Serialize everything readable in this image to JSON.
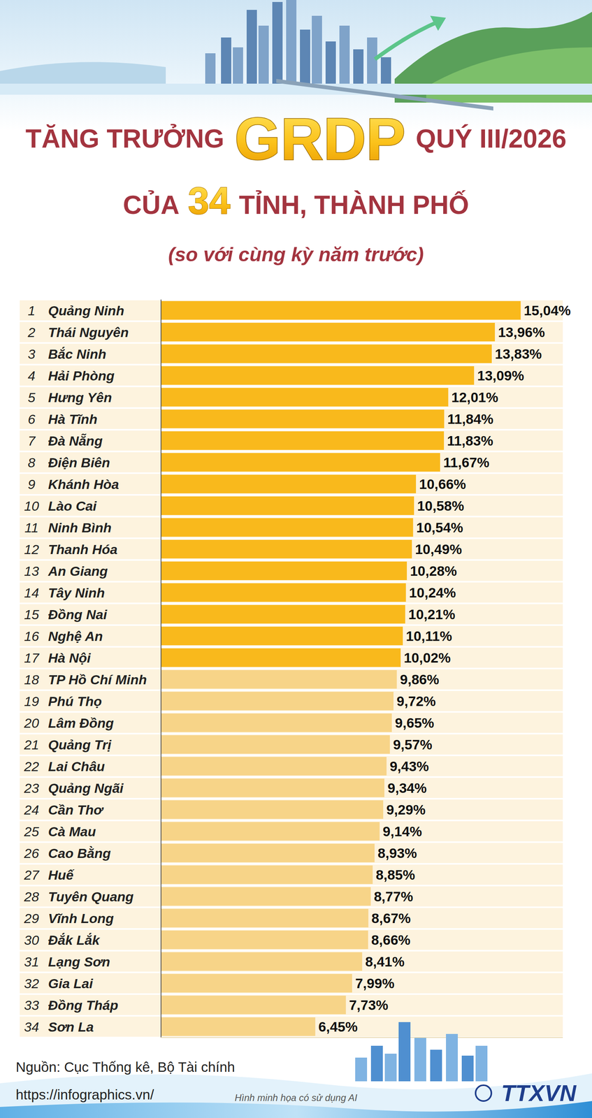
{
  "chart_data": {
    "type": "bar",
    "orientation": "horizontal",
    "title": [
      "TĂNG TRƯỞNG",
      "GRDP",
      "QUÝ III/2026"
    ],
    "subtitle": [
      "CỦA",
      "34",
      "TỈNH, THÀNH PHỐ"
    ],
    "note": "(so với cùng kỳ năm trước)",
    "ranks": [
      1,
      2,
      3,
      4,
      5,
      6,
      7,
      8,
      9,
      10,
      11,
      12,
      13,
      14,
      15,
      16,
      17,
      18,
      19,
      20,
      21,
      22,
      23,
      24,
      25,
      26,
      27,
      28,
      29,
      30,
      31,
      32,
      33,
      34
    ],
    "categories": [
      "Quảng Ninh",
      "Thái Nguyên",
      "Bắc Ninh",
      "Hải Phòng",
      "Hưng Yên",
      "Hà Tĩnh",
      "Đà Nẵng",
      "Điện Biên",
      "Khánh Hòa",
      "Lào Cai",
      "Ninh Bình",
      "Thanh Hóa",
      "An Giang",
      "Tây Ninh",
      "Đồng Nai",
      "Nghệ An",
      "Hà Nội",
      "TP Hồ Chí Minh",
      "Phú Thọ",
      "Lâm Đồng",
      "Quảng Trị",
      "Lai Châu",
      "Quảng Ngãi",
      "Cần Thơ",
      "Cà Mau",
      "Cao Bằng",
      "Huế",
      "Tuyên Quang",
      "Vĩnh Long",
      "Đắk Lắk",
      "Lạng Sơn",
      "Gia Lai",
      "Đồng Tháp",
      "Sơn La"
    ],
    "values": [
      15.04,
      13.96,
      13.83,
      13.09,
      12.01,
      11.84,
      11.83,
      11.67,
      10.66,
      10.58,
      10.54,
      10.49,
      10.28,
      10.24,
      10.21,
      10.11,
      10.02,
      9.86,
      9.72,
      9.65,
      9.57,
      9.43,
      9.34,
      9.29,
      9.14,
      8.93,
      8.85,
      8.77,
      8.67,
      8.66,
      8.41,
      7.99,
      7.73,
      6.45
    ],
    "value_labels": [
      "15,04%",
      "13,96%",
      "13,83%",
      "13,09%",
      "12,01%",
      "11,84%",
      "11,83%",
      "11,67%",
      "10,66%",
      "10,58%",
      "10,54%",
      "10,49%",
      "10,28%",
      "10,24%",
      "10,21%",
      "10,11%",
      "10,02%",
      "9,86%",
      "9,72%",
      "9,65%",
      "9,57%",
      "9,43%",
      "9,34%",
      "9,29%",
      "9,14%",
      "8,93%",
      "8,85%",
      "8,77%",
      "8,67%",
      "8,66%",
      "8,41%",
      "7,99%",
      "7,73%",
      "6,45%"
    ],
    "colors": [
      "#F9B91C",
      "#F9B91C",
      "#F9B91C",
      "#F9B91C",
      "#F9B91C",
      "#F9B91C",
      "#F9B91C",
      "#F9B91C",
      "#F9B91C",
      "#F9B91C",
      "#F9B91C",
      "#F9B91C",
      "#F9B91C",
      "#F9B91C",
      "#F9B91C",
      "#F9B91C",
      "#F9B91C",
      "#F7D488",
      "#F7D488",
      "#F7D488",
      "#F7D488",
      "#F7D488",
      "#F7D488",
      "#F7D488",
      "#F7D488",
      "#F7D488",
      "#F7D488",
      "#F7D488",
      "#F7D488",
      "#F7D488",
      "#F7D488",
      "#F7D488",
      "#F7D488",
      "#F7D488"
    ],
    "xlim": [
      0,
      16.8
    ],
    "tick_labels": false,
    "grid": false,
    "data_labels": true,
    "source": "Nguồn: Cục Thống kê, Bộ Tài chính",
    "url": "https://infographics.vn/",
    "credit": "Hình minh họa có sử dụng AI",
    "logo": "TTXVN"
  }
}
